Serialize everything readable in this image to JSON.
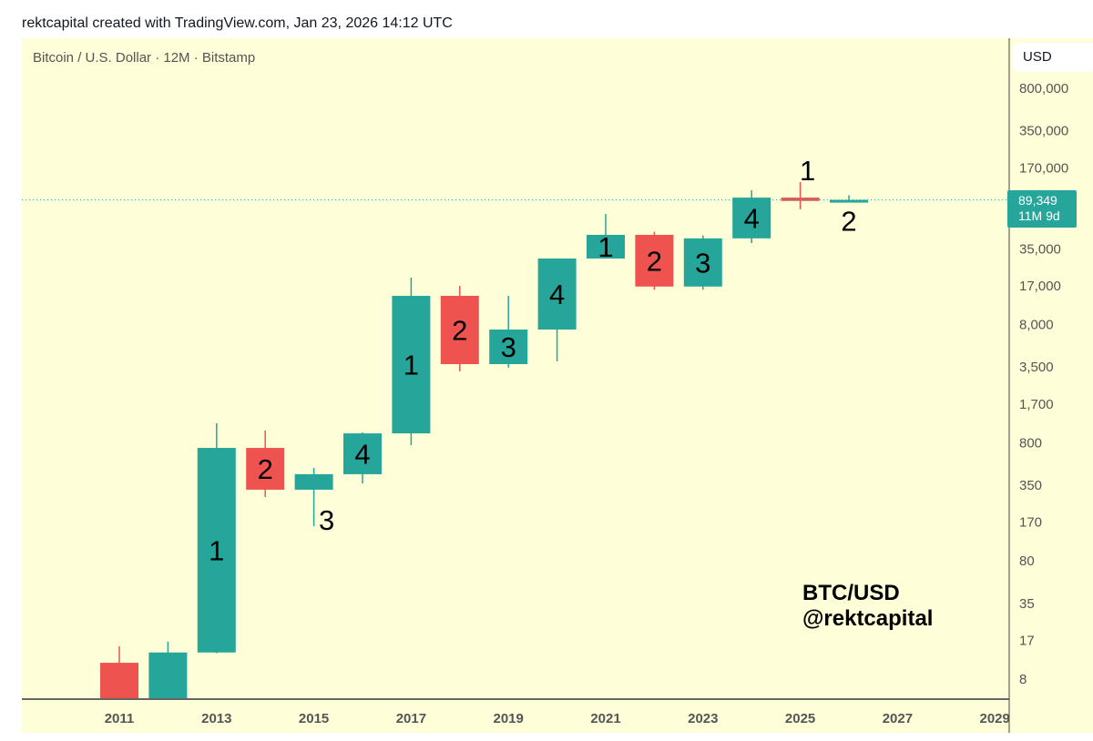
{
  "header": {
    "credit": "rektcapital created with TradingView.com, Jan 23, 2026 14:12 UTC"
  },
  "legend": {
    "symbol": "Bitcoin / U.S. Dollar · 12M · Bitstamp"
  },
  "price_axis": {
    "currency": "USD",
    "last_price": "89,349",
    "countdown": "11M 9d"
  },
  "watermark": {
    "line1": "BTC/USD",
    "line2": "@rektcapital"
  },
  "colors": {
    "up": "#26a69a",
    "down": "#ef5350",
    "background": "#fefed8",
    "axis_text": "#555555"
  },
  "chart_data": {
    "type": "candlestick",
    "title": "Bitcoin / U.S. Dollar · 12M · Bitstamp",
    "yscale": "log",
    "ylim": [
      5,
      1000000
    ],
    "y_ticks": [
      800000,
      350000,
      170000,
      35000,
      17000,
      8000,
      3500,
      1700,
      800,
      350,
      170,
      80,
      35,
      17,
      8
    ],
    "y_tick_labels": [
      "800,000",
      "350,000",
      "170,000",
      "35,000",
      "17,000",
      "8,000",
      "3,500",
      "1,700",
      "800",
      "350",
      "170",
      "80",
      "35",
      "17",
      "8"
    ],
    "x_tick_labels": [
      "2011",
      "2013",
      "2015",
      "2017",
      "2019",
      "2021",
      "2023",
      "2025",
      "2027",
      "2029"
    ],
    "x_ticks": [
      2011,
      2013,
      2015,
      2017,
      2019,
      2021,
      2023,
      2025,
      2027,
      2029
    ],
    "last_price": 89349,
    "candles": [
      {
        "year": 2011,
        "open": 10.8,
        "high": 14.9,
        "low": 4,
        "close": 4.7,
        "label": ""
      },
      {
        "year": 2012,
        "open": 4.7,
        "high": 16.3,
        "low": 4,
        "close": 13.2,
        "label": ""
      },
      {
        "year": 2013,
        "open": 13.2,
        "high": 1148,
        "low": 13,
        "close": 711,
        "label": "1"
      },
      {
        "year": 2014,
        "open": 711,
        "high": 998,
        "low": 273,
        "close": 315,
        "label": "2"
      },
      {
        "year": 2015,
        "open": 315,
        "high": 482,
        "low": 155,
        "close": 426,
        "label": "3"
      },
      {
        "year": 2016,
        "open": 426,
        "high": 960,
        "low": 356,
        "close": 944,
        "label": "4"
      },
      {
        "year": 2017,
        "open": 944,
        "high": 19630,
        "low": 750,
        "close": 13770,
        "label": "1"
      },
      {
        "year": 2018,
        "open": 13770,
        "high": 16750,
        "low": 3155,
        "close": 3640,
        "label": "2"
      },
      {
        "year": 2019,
        "open": 3640,
        "high": 13770,
        "low": 3400,
        "close": 7140,
        "label": "3"
      },
      {
        "year": 2020,
        "open": 7140,
        "high": 28600,
        "low": 3840,
        "close": 28500,
        "label": "4"
      },
      {
        "year": 2021,
        "open": 28500,
        "high": 67900,
        "low": 28500,
        "close": 45200,
        "label": "1"
      },
      {
        "year": 2022,
        "open": 45200,
        "high": 48000,
        "low": 15500,
        "close": 16500,
        "label": "2"
      },
      {
        "year": 2023,
        "open": 16500,
        "high": 44700,
        "low": 15500,
        "close": 42200,
        "label": "3"
      },
      {
        "year": 2024,
        "open": 42200,
        "high": 108000,
        "low": 38500,
        "close": 93400,
        "label": "4"
      },
      {
        "year": 2025,
        "open": 93400,
        "high": 126200,
        "low": 74400,
        "close": 87500,
        "label": "1"
      },
      {
        "year": 2026,
        "open": 87500,
        "high": 97900,
        "low": 87200,
        "close": 89349,
        "label": "2"
      }
    ]
  }
}
